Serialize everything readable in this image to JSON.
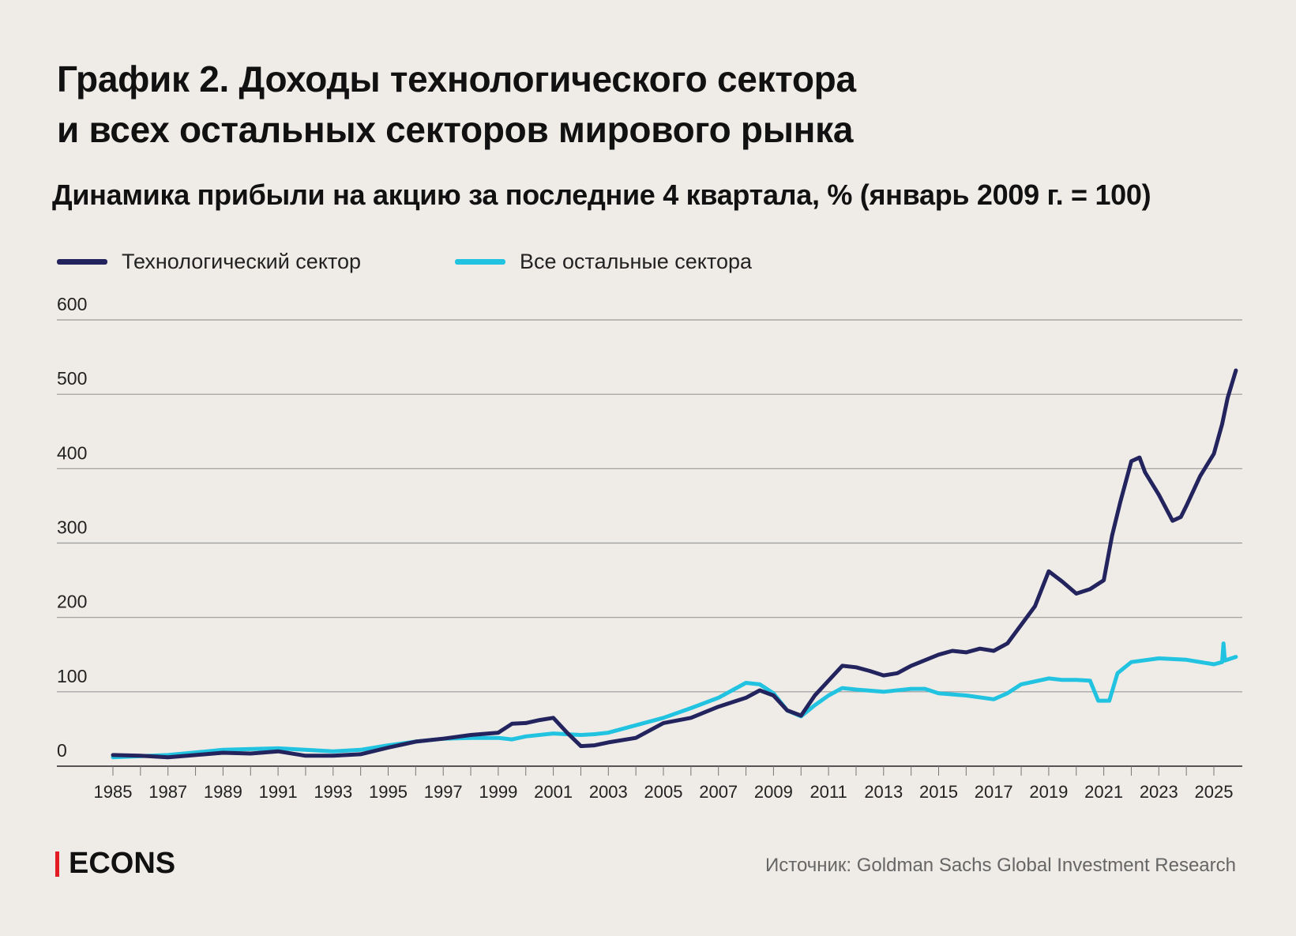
{
  "title_line1": "График 2. Доходы технологического сектора",
  "title_line2": "и всех остальных секторов мирового рынка",
  "subtitle": "Динамика прибыли на акцию за последние 4 квартала, % (январь 2009 г. = 100)",
  "brand": "ECONS",
  "source": "Источник: Goldman Sachs Global Investment Research",
  "colors": {
    "tech": "#23235e",
    "others": "#22c3e0",
    "grid": "#888888",
    "brand_bar": "#e31b23"
  },
  "chart_data": {
    "type": "line",
    "title": "График 2. Доходы технологического сектора и всех остальных секторов мирового рынка",
    "subtitle": "Динамика прибыли на акцию за последние 4 квартала, % (январь 2009 г. = 100)",
    "xlabel": "",
    "ylabel": "",
    "xlim": [
      1985,
      2025.9
    ],
    "ylim": [
      0,
      600
    ],
    "y_ticks": [
      "0",
      "100",
      "200",
      "300",
      "400",
      "500",
      "600"
    ],
    "x_ticks": [
      "1985",
      "1987",
      "1989",
      "1991",
      "1993",
      "1995",
      "1997",
      "1999",
      "2001",
      "2003",
      "2005",
      "2007",
      "2009",
      "2011",
      "2013",
      "2015",
      "2017",
      "2019",
      "2021",
      "2023",
      "2025"
    ],
    "grid": "horizontal",
    "legend": "top-left",
    "series": [
      {
        "name": "Технологический сектор",
        "color": "#23235e",
        "x": [
          1985,
          1986,
          1987,
          1988,
          1989,
          1990,
          1991,
          1992,
          1993,
          1994,
          1995,
          1996,
          1997,
          1998,
          1999,
          1999.5,
          2000,
          2000.5,
          2001,
          2001.5,
          2002,
          2002.5,
          2003,
          2004,
          2005,
          2006,
          2007,
          2008,
          2008.5,
          2009,
          2009.5,
          2010,
          2010.5,
          2011,
          2011.5,
          2012,
          2012.5,
          2013,
          2013.5,
          2014,
          2015,
          2015.5,
          2016,
          2016.5,
          2017,
          2017.5,
          2018,
          2018.5,
          2019,
          2019.5,
          2020,
          2020.5,
          2021,
          2021.3,
          2021.6,
          2022,
          2022.3,
          2022.5,
          2023,
          2023.5,
          2023.8,
          2024,
          2024.5,
          2025,
          2025.3,
          2025.5,
          2025.8
        ],
        "values": [
          15,
          14,
          12,
          15,
          18,
          17,
          20,
          14,
          14,
          16,
          25,
          33,
          37,
          42,
          45,
          57,
          58,
          62,
          65,
          45,
          27,
          28,
          32,
          38,
          58,
          65,
          80,
          92,
          102,
          95,
          75,
          68,
          95,
          115,
          135,
          133,
          128,
          122,
          125,
          135,
          150,
          155,
          153,
          158,
          155,
          165,
          190,
          215,
          262,
          248,
          232,
          238,
          250,
          310,
          355,
          410,
          415,
          395,
          365,
          330,
          335,
          350,
          390,
          420,
          460,
          495,
          532
        ]
      },
      {
        "name": "Все остальные сектора",
        "color": "#22c3e0",
        "x": [
          1985,
          1987,
          1989,
          1991,
          1992,
          1993,
          1994,
          1995,
          1996,
          1997,
          1998,
          1999,
          1999.5,
          2000,
          2001,
          2002,
          2002.5,
          2003,
          2004,
          2005,
          2006,
          2007,
          2008,
          2008.5,
          2009,
          2009.5,
          2010,
          2010.5,
          2011,
          2011.5,
          2012,
          2013,
          2014,
          2014.5,
          2015,
          2016,
          2017,
          2017.5,
          2018,
          2019,
          2019.5,
          2020,
          2020.5,
          2020.8,
          2021.2,
          2021.5,
          2022,
          2023,
          2024,
          2025,
          2025.3,
          2025.35,
          2025.4,
          2025.8
        ],
        "values": [
          12,
          15,
          22,
          24,
          22,
          20,
          22,
          28,
          33,
          37,
          38,
          38,
          36,
          40,
          44,
          42,
          43,
          45,
          55,
          65,
          78,
          92,
          112,
          110,
          98,
          75,
          67,
          82,
          95,
          105,
          103,
          100,
          104,
          104,
          98,
          95,
          90,
          98,
          110,
          118,
          116,
          116,
          115,
          88,
          88,
          125,
          140,
          145,
          143,
          137,
          140,
          165,
          142,
          147
        ]
      }
    ]
  }
}
